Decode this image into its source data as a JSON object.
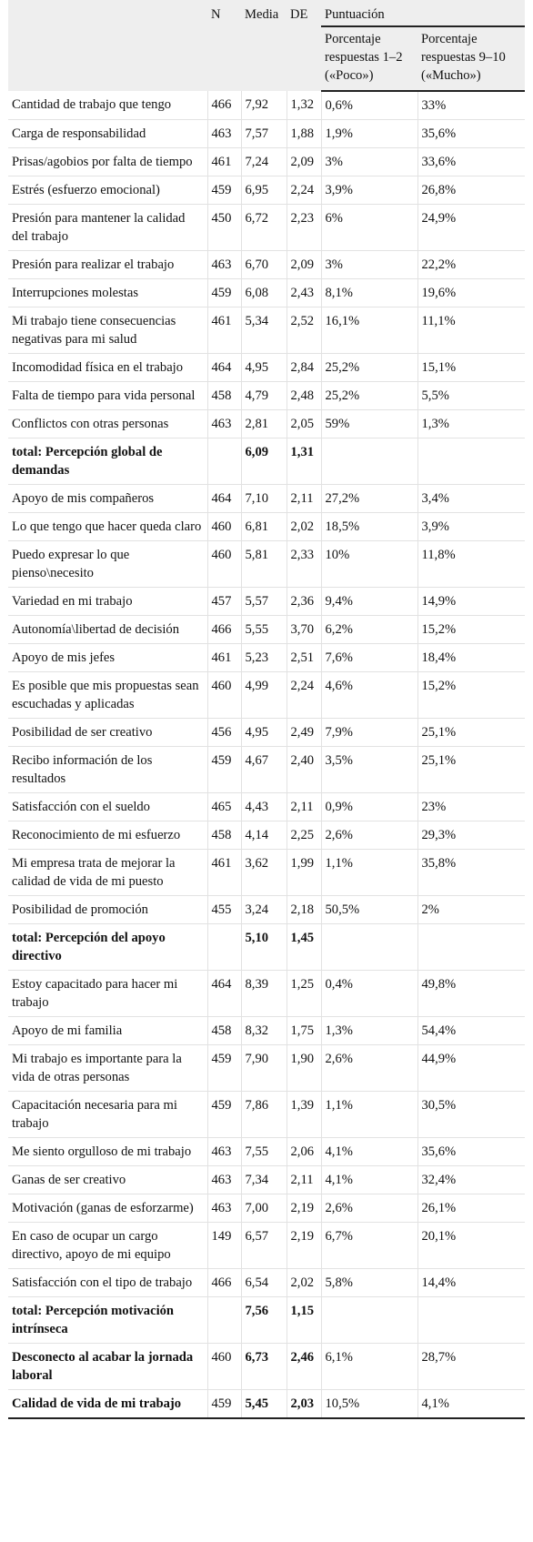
{
  "header": {
    "n": "N",
    "media": "Media",
    "de": "DE",
    "puntuacion": "Puntuación",
    "poco": "Porcentaje respuestas 1–2 («Poco»)",
    "mucho": "Porcentaje respuestas 9–10 («Mucho»)"
  },
  "rows": [
    {
      "label": "Cantidad de trabajo que tengo",
      "n": "466",
      "media": "7,92",
      "de": "1,32",
      "poco": "0,6%",
      "mucho": "33%"
    },
    {
      "label": "Carga de responsabilidad",
      "n": "463",
      "media": "7,57",
      "de": "1,88",
      "poco": "1,9%",
      "mucho": "35,6%"
    },
    {
      "label": "Prisas/agobios por falta de tiempo",
      "n": "461",
      "media": "7,24",
      "de": "2,09",
      "poco": "3%",
      "mucho": "33,6%"
    },
    {
      "label": "Estrés (esfuerzo emocional)",
      "n": "459",
      "media": "6,95",
      "de": "2,24",
      "poco": "3,9%",
      "mucho": "26,8%"
    },
    {
      "label": "Presión para mantener la calidad del trabajo",
      "n": "450",
      "media": "6,72",
      "de": "2,23",
      "poco": "6%",
      "mucho": "24,9%"
    },
    {
      "label": "Presión para realizar el trabajo",
      "n": "463",
      "media": "6,70",
      "de": "2,09",
      "poco": "3%",
      "mucho": "22,2%"
    },
    {
      "label": "Interrupciones molestas",
      "n": "459",
      "media": "6,08",
      "de": "2,43",
      "poco": "8,1%",
      "mucho": "19,6%"
    },
    {
      "label": "Mi trabajo tiene consecuencias negativas para mi salud",
      "n": "461",
      "media": "5,34",
      "de": "2,52",
      "poco": "16,1%",
      "mucho": "11,1%"
    },
    {
      "label": "Incomodidad física en el trabajo",
      "n": "464",
      "media": "4,95",
      "de": "2,84",
      "poco": "25,2%",
      "mucho": "15,1%"
    },
    {
      "label": "Falta de tiempo para vida personal",
      "n": "458",
      "media": "4,79",
      "de": "2,48",
      "poco": "25,2%",
      "mucho": "5,5%"
    },
    {
      "label": "Conflictos con otras personas",
      "n": "463",
      "media": "2,81",
      "de": "2,05",
      "poco": "59%",
      "mucho": "1,3%"
    },
    {
      "label": "total: Percepción global de demandas",
      "media": "6,09",
      "de": "1,31",
      "bold": true
    },
    {
      "label": "Apoyo de mis compañeros",
      "n": "464",
      "media": "7,10",
      "de": "2,11",
      "poco": "27,2%",
      "mucho": "3,4%"
    },
    {
      "label": "Lo que tengo que hacer queda claro",
      "n": "460",
      "media": "6,81",
      "de": "2,02",
      "poco": "18,5%",
      "mucho": "3,9%"
    },
    {
      "label": "Puedo expresar lo que pienso\\necesito",
      "n": "460",
      "media": "5,81",
      "de": "2,33",
      "poco": "10%",
      "mucho": "11,8%"
    },
    {
      "label": "Variedad en mi trabajo",
      "n": "457",
      "media": "5,57",
      "de": "2,36",
      "poco": "9,4%",
      "mucho": "14,9%"
    },
    {
      "label": "Autonomía\\libertad de decisión",
      "n": "466",
      "media": "5,55",
      "de": "3,70",
      "poco": "6,2%",
      "mucho": "15,2%"
    },
    {
      "label": "Apoyo de mis jefes",
      "n": "461",
      "media": "5,23",
      "de": "2,51",
      "poco": "7,6%",
      "mucho": "18,4%"
    },
    {
      "label": "Es posible que mis propuestas sean escuchadas y aplicadas",
      "n": "460",
      "media": "4,99",
      "de": "2,24",
      "poco": "4,6%",
      "mucho": "15,2%"
    },
    {
      "label": "Posibilidad de ser creativo",
      "n": "456",
      "media": "4,95",
      "de": "2,49",
      "poco": "7,9%",
      "mucho": "25,1%"
    },
    {
      "label": "Recibo información de los resultados",
      "n": "459",
      "media": "4,67",
      "de": "2,40",
      "poco": "3,5%",
      "mucho": "25,1%"
    },
    {
      "label": "Satisfacción con el sueldo",
      "n": "465",
      "media": "4,43",
      "de": "2,11",
      "poco": "0,9%",
      "mucho": "23%"
    },
    {
      "label": "Reconocimiento de mi esfuerzo",
      "n": "458",
      "media": "4,14",
      "de": "2,25",
      "poco": "2,6%",
      "mucho": "29,3%"
    },
    {
      "label": "Mi empresa trata de mejorar la calidad de vida de mi puesto",
      "n": "461",
      "media": "3,62",
      "de": "1,99",
      "poco": "1,1%",
      "mucho": "35,8%"
    },
    {
      "label": "Posibilidad de promoción",
      "n": "455",
      "media": "3,24",
      "de": "2,18",
      "poco": "50,5%",
      "mucho": "2%"
    },
    {
      "label": "total: Percepción del apoyo directivo",
      "media": "5,10",
      "de": "1,45",
      "bold": true
    },
    {
      "label": "Estoy capacitado para hacer mi trabajo",
      "n": "464",
      "media": "8,39",
      "de": "1,25",
      "poco": "0,4%",
      "mucho": "49,8%"
    },
    {
      "label": "Apoyo de mi familia",
      "n": "458",
      "media": "8,32",
      "de": "1,75",
      "poco": "1,3%",
      "mucho": "54,4%"
    },
    {
      "label": "Mi trabajo es importante para la vida de otras personas",
      "n": "459",
      "media": "7,90",
      "de": "1,90",
      "poco": "2,6%",
      "mucho": "44,9%"
    },
    {
      "label": "Capacitación necesaria para mi trabajo",
      "n": "459",
      "media": "7,86",
      "de": "1,39",
      "poco": "1,1%",
      "mucho": "30,5%"
    },
    {
      "label": "Me siento orgulloso de mi trabajo",
      "n": "463",
      "media": "7,55",
      "de": "2,06",
      "poco": "4,1%",
      "mucho": "35,6%"
    },
    {
      "label": "Ganas de ser creativo",
      "n": "463",
      "media": "7,34",
      "de": "2,11",
      "poco": "4,1%",
      "mucho": "32,4%"
    },
    {
      "label": "Motivación (ganas de esforzarme)",
      "n": "463",
      "media": "7,00",
      "de": "2,19",
      "poco": "2,6%",
      "mucho": "26,1%"
    },
    {
      "label": "En caso de ocupar un cargo directivo, apoyo de mi equipo",
      "n": "149",
      "media": "6,57",
      "de": "2,19",
      "poco": "6,7%",
      "mucho": "20,1%"
    },
    {
      "label": "Satisfacción con el tipo de trabajo",
      "n": "466",
      "media": "6,54",
      "de": "2,02",
      "poco": "5,8%",
      "mucho": "14,4%"
    },
    {
      "label": "total: Percepción motivación intrínseca",
      "media": "7,56",
      "de": "1,15",
      "bold": true
    },
    {
      "label": "Desconecto al acabar la jornada laboral",
      "n": "460",
      "media": "6,73",
      "de": "2,46",
      "poco": "6,1%",
      "mucho": "28,7%",
      "bold": true
    },
    {
      "label": "Calidad de vida de mi trabajo",
      "n": "459",
      "media": "5,45",
      "de": "2,03",
      "poco": "10,5%",
      "mucho": "4,1%",
      "bold": true
    }
  ]
}
